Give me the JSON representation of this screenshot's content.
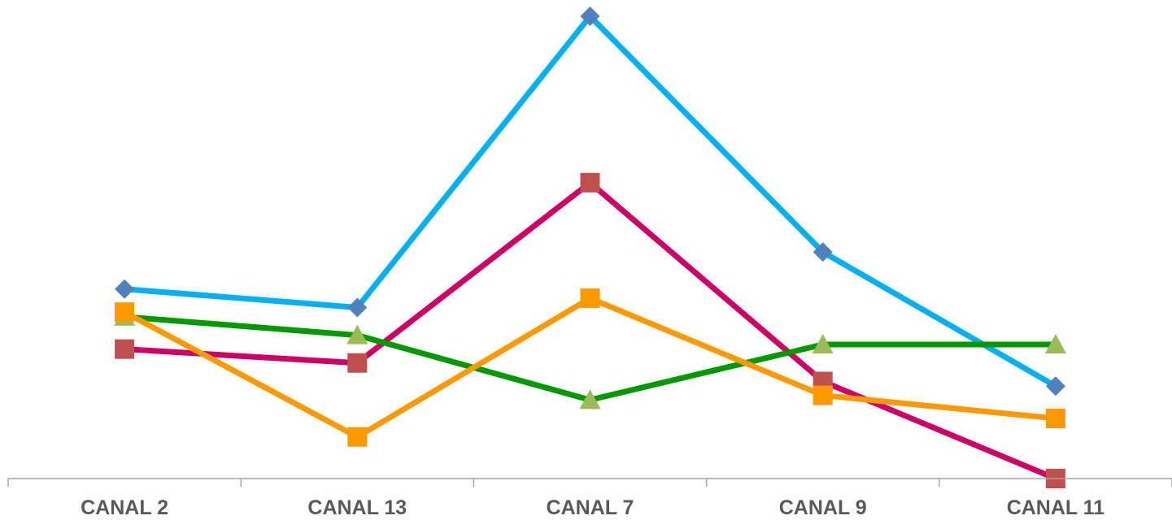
{
  "chart_data": {
    "type": "line",
    "categories": [
      "CANAL 2",
      "CANAL 13",
      "CANAL 7",
      "CANAL 9",
      "CANAL 11"
    ],
    "ylim": [
      0,
      100
    ],
    "grid": false,
    "legend": "none",
    "series": [
      {
        "values": [
          41,
          37,
          100,
          49,
          20
        ],
        "color": "#00B0F0",
        "marker": "diamond",
        "marker_color": "#4F81BD"
      },
      {
        "values": [
          28,
          25,
          64,
          21,
          0
        ],
        "color": "#CC0066",
        "marker": "square",
        "marker_color": "#C0504D"
      },
      {
        "values": [
          35,
          31,
          17,
          29,
          29
        ],
        "color": "#009900",
        "marker": "triangle",
        "marker_color": "#9BBB59"
      },
      {
        "values": [
          36,
          9,
          39,
          18,
          13
        ],
        "color": "#FF9900",
        "marker": "square",
        "marker_color": "#FF9900"
      }
    ]
  }
}
